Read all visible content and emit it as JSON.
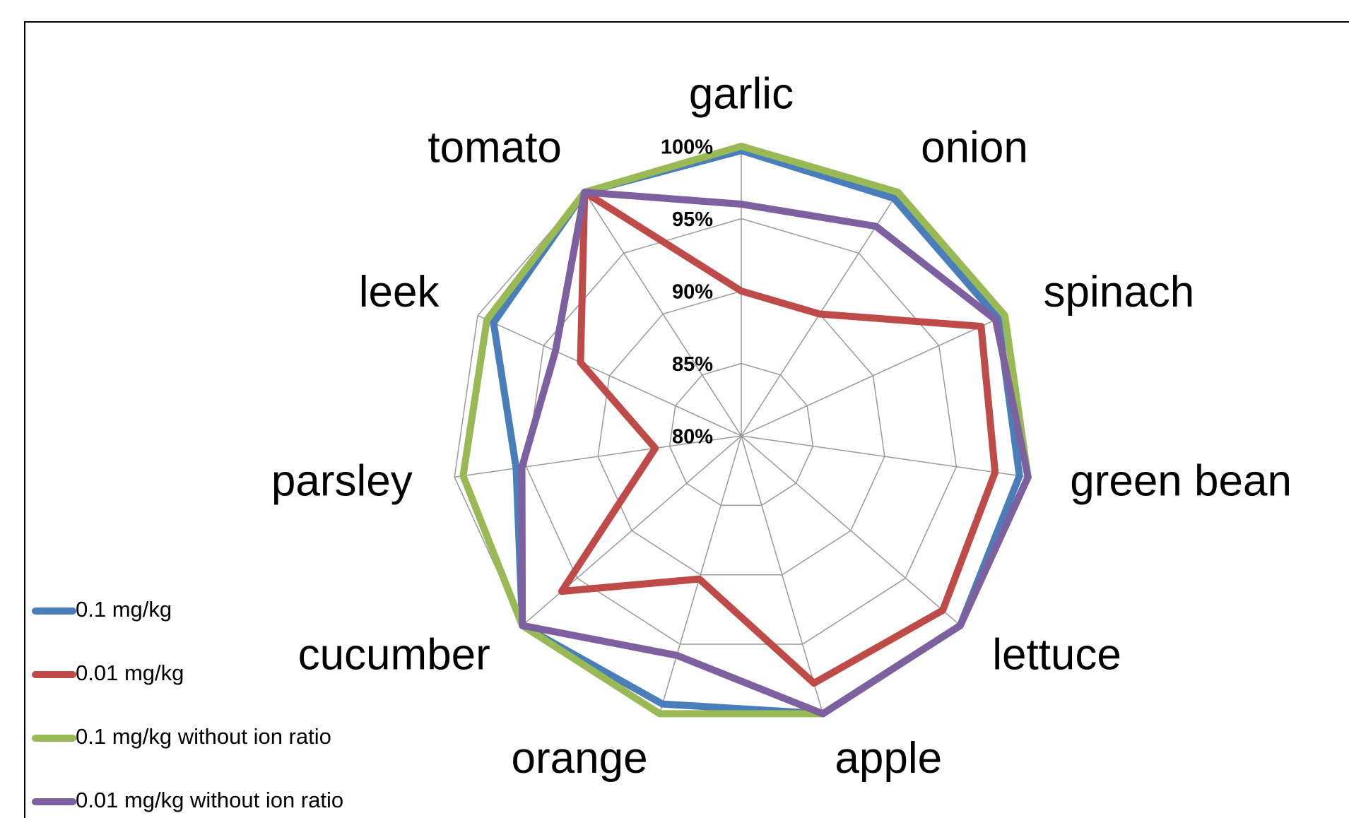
{
  "chart_data": {
    "type": "radar",
    "categories": [
      "garlic",
      "onion",
      "spinach",
      "green bean",
      "lettuce",
      "apple",
      "orange",
      "cucumber",
      "parsley",
      "leek",
      "tomato"
    ],
    "ylim": [
      80,
      100
    ],
    "yticks": [
      {
        "value": 80,
        "label": "80%"
      },
      {
        "value": 85,
        "label": "85%"
      },
      {
        "value": 90,
        "label": "90%"
      },
      {
        "value": 95,
        "label": "95%"
      },
      {
        "value": 100,
        "label": "100%"
      }
    ],
    "grid": true,
    "legend": "bottom-left",
    "series": [
      {
        "name": "0.1 mg/kg",
        "color": "#4a7ebb",
        "values": [
          99.7,
          99.5,
          99.5,
          99.4,
          100,
          100,
          99.3,
          100,
          95.7,
          98.8,
          100
        ]
      },
      {
        "name": "0.01 mg/kg",
        "color": "#be4b48",
        "values": [
          90,
          90,
          98.2,
          97.7,
          98.4,
          97.8,
          90.3,
          96.4,
          86,
          92.2,
          100
        ]
      },
      {
        "name": "0.1 mg/kg without ion ratio",
        "color": "#98b954",
        "values": [
          100,
          100,
          100,
          100,
          100,
          100,
          100,
          100,
          99.4,
          99.3,
          100
        ]
      },
      {
        "name": "0.01 mg/kg without ion ratio",
        "color": "#7d60a0",
        "values": [
          96,
          97.2,
          99.3,
          100,
          100,
          100,
          95.8,
          100,
          95.3,
          94.1,
          100
        ]
      }
    ]
  }
}
